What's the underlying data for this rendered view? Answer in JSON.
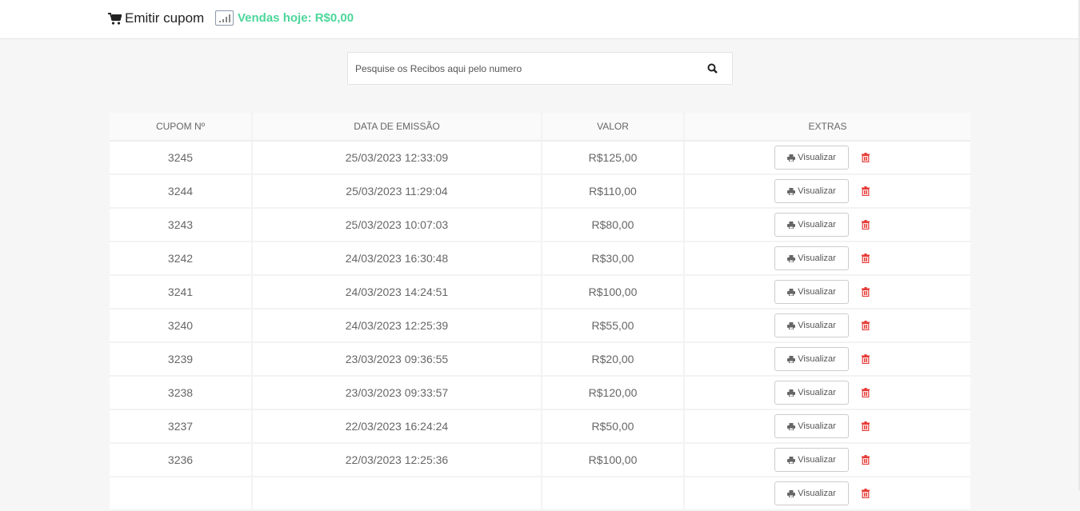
{
  "header": {
    "emit_label": "Emitir cupom",
    "sales_label": "Vendas hoje: R$0,00"
  },
  "search": {
    "placeholder": "Pesquise os Recibos aqui pelo numero"
  },
  "table": {
    "columns": [
      "CUPOM Nº",
      "DATA DE EMISSÃO",
      "VALOR",
      "EXTRAS"
    ],
    "view_label": "Visualizar",
    "rows": [
      {
        "num": "3245",
        "date": "25/03/2023 12:33:09",
        "value": "R$125,00"
      },
      {
        "num": "3244",
        "date": "25/03/2023 11:29:04",
        "value": "R$110,00"
      },
      {
        "num": "3243",
        "date": "25/03/2023 10:07:03",
        "value": "R$80,00"
      },
      {
        "num": "3242",
        "date": "24/03/2023 16:30:48",
        "value": "R$30,00"
      },
      {
        "num": "3241",
        "date": "24/03/2023 14:24:51",
        "value": "R$100,00"
      },
      {
        "num": "3240",
        "date": "24/03/2023 12:25:39",
        "value": "R$55,00"
      },
      {
        "num": "3239",
        "date": "23/03/2023 09:36:55",
        "value": "R$20,00"
      },
      {
        "num": "3238",
        "date": "23/03/2023 09:33:57",
        "value": "R$120,00"
      },
      {
        "num": "3237",
        "date": "22/03/2023 16:24:24",
        "value": "R$50,00"
      },
      {
        "num": "3236",
        "date": "22/03/2023 12:25:36",
        "value": "R$100,00"
      },
      {
        "num": "",
        "date": "",
        "value": ""
      }
    ]
  },
  "colors": {
    "sales": "#4cd69a",
    "trash": "#e53935"
  }
}
